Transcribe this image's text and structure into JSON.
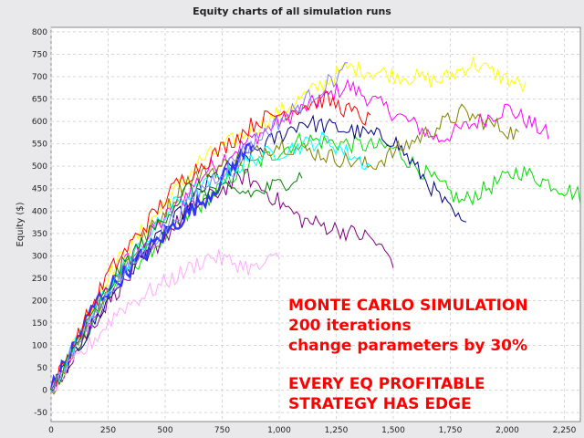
{
  "chart_data": {
    "type": "line",
    "title": "Equity charts of all simulation runs",
    "ylabel": "Equity ($)",
    "xlabel": "",
    "xlim": [
      0,
      2320
    ],
    "ylim": [
      -70,
      810
    ],
    "x_ticks": [
      0,
      250,
      500,
      750,
      1000,
      1250,
      1500,
      1750,
      2000,
      2250
    ],
    "y_ticks": [
      -50,
      0,
      50,
      100,
      150,
      200,
      250,
      300,
      350,
      400,
      450,
      500,
      550,
      600,
      650,
      700,
      750,
      800
    ],
    "grid": true,
    "run_count": 200,
    "series": [
      {
        "color": "#ff00ff",
        "x": [
          0,
          300,
          700,
          1000,
          1300,
          1700,
          2000,
          2180
        ],
        "y": [
          0,
          270,
          500,
          600,
          680,
          560,
          630,
          570
        ]
      },
      {
        "color": "#00dd00",
        "x": [
          0,
          300,
          800,
          1100,
          1500,
          1800,
          2050,
          2320
        ],
        "y": [
          0,
          250,
          480,
          560,
          540,
          420,
          490,
          435
        ]
      },
      {
        "color": "#ffff00",
        "x": [
          0,
          250,
          650,
          1000,
          1300,
          1700,
          1850,
          2080
        ],
        "y": [
          0,
          260,
          510,
          620,
          720,
          690,
          730,
          675
        ]
      },
      {
        "color": "#000080",
        "x": [
          0,
          300,
          700,
          1100,
          1500,
          1750,
          1820
        ],
        "y": [
          0,
          240,
          470,
          600,
          560,
          400,
          360
        ]
      },
      {
        "color": "#808000",
        "x": [
          0,
          250,
          600,
          1000,
          1400,
          1800,
          2050
        ],
        "y": [
          0,
          230,
          470,
          550,
          500,
          620,
          570
        ]
      },
      {
        "color": "#800080",
        "x": [
          0,
          250,
          600,
          850,
          1100,
          1400,
          1500
        ],
        "y": [
          0,
          200,
          400,
          480,
          380,
          340,
          290
        ]
      },
      {
        "color": "#3333ff",
        "x": [
          0,
          200,
          500,
          700,
          880
        ],
        "y": [
          0,
          200,
          350,
          440,
          550
        ]
      },
      {
        "color": "#00ffff",
        "x": [
          0,
          250,
          550,
          900,
          1200,
          1400
        ],
        "y": [
          0,
          230,
          420,
          520,
          560,
          500
        ]
      },
      {
        "color": "#ff0000",
        "x": [
          0,
          250,
          550,
          900,
          1200,
          1400
        ],
        "y": [
          0,
          260,
          460,
          600,
          650,
          600
        ]
      },
      {
        "color": "#ffaaff",
        "x": [
          0,
          300,
          700,
          900,
          1000
        ],
        "y": [
          0,
          180,
          300,
          270,
          300
        ]
      },
      {
        "color": "#008000",
        "x": [
          0,
          300,
          600,
          900,
          1100
        ],
        "y": [
          0,
          270,
          450,
          440,
          480
        ]
      },
      {
        "color": "#8080ff",
        "x": [
          0,
          250,
          600,
          900,
          1300
        ],
        "y": [
          0,
          220,
          420,
          560,
          720
        ]
      }
    ]
  },
  "annotation": {
    "lines": [
      "MONTE CARLO SIMULATION",
      "200 iterations",
      "change parameters by 30%",
      "",
      "EVERY EQ PROFITABLE",
      "STRATEGY HAS EDGE"
    ],
    "color": "#ff0000"
  }
}
